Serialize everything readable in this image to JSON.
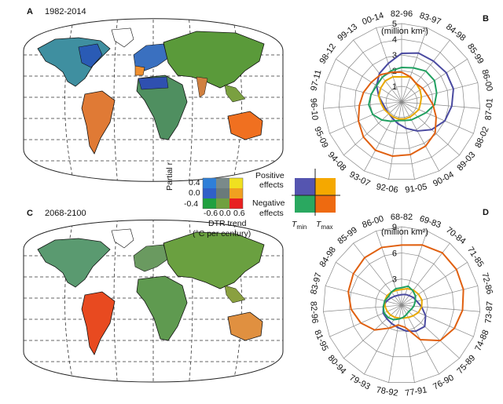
{
  "panels": {
    "a": {
      "label": "A",
      "period": "1982-2014"
    },
    "b": {
      "label": "B"
    },
    "c": {
      "label": "C",
      "period": "2068-2100"
    },
    "d": {
      "label": "D"
    }
  },
  "legend": {
    "ylabel": "Partial r",
    "yticks": [
      "0.4",
      "0.0",
      "-0.4"
    ],
    "xticks": [
      "-0.6",
      "0.0",
      "0.6"
    ],
    "xlabel_line1": "DTR trend",
    "xlabel_line2": "(°C per century)",
    "positive": "Positive",
    "effects": "effects",
    "negative": "Negative",
    "tmin": "T",
    "tmin_sub": "min",
    "tmax": "T",
    "tmax_sub": "max",
    "grid_colors": [
      [
        "#2f7fd8",
        "#7a8a8a",
        "#f0e020"
      ],
      [
        "#3060c8",
        "#6a7a7a",
        "#f0a020"
      ],
      [
        "#20a040",
        "#70a040",
        "#e82020"
      ]
    ],
    "quad_colors": {
      "pos_tmin": "#5555b0",
      "pos_tmax": "#f5a800",
      "neg_tmin": "#2aa860",
      "neg_tmax": "#ee6a10"
    }
  },
  "colors": {
    "pos_tmin": "#4a4aa0",
    "pos_tmax": "#e8a800",
    "neg_tmin": "#20a060",
    "neg_tmax": "#e06010"
  },
  "chart_data": [
    {
      "type": "radar",
      "panel": "B",
      "unit": "(million km²)",
      "rlim": [
        0,
        5
      ],
      "rticks": [
        "1",
        "2",
        "3",
        "4",
        "5"
      ],
      "categories": [
        "82-96",
        "83-97",
        "84-98",
        "85-99",
        "86-00",
        "87-01",
        "88-02",
        "89-03",
        "90-04",
        "91-05",
        "92-06",
        "93-07",
        "94-08",
        "95-09",
        "96-10",
        "97-11",
        "98-12",
        "99-13",
        "00-14"
      ],
      "series": [
        {
          "key": "pos_tmin",
          "values": [
            3.1,
            3.3,
            3.3,
            3.4,
            3.4,
            3.2,
            3.0,
            2.6,
            2.1,
            1.7,
            1.4,
            1.2,
            1.1,
            1.1,
            1.2,
            1.5,
            1.9,
            2.3,
            2.6
          ]
        },
        {
          "key": "pos_tmax",
          "values": [
            1.6,
            1.7,
            1.5,
            1.4,
            1.3,
            1.2,
            1.2,
            1.1,
            1.1,
            1.1,
            1.1,
            1.1,
            1.1,
            1.2,
            1.3,
            1.5,
            1.6,
            1.7,
            1.7
          ]
        },
        {
          "key": "neg_tmin",
          "values": [
            2.2,
            2.3,
            2.5,
            2.5,
            2.3,
            2.1,
            1.7,
            1.4,
            1.3,
            1.2,
            1.2,
            1.4,
            1.7,
            2.0,
            2.1,
            2.0,
            1.9,
            2.0,
            2.1
          ]
        },
        {
          "key": "neg_tmax",
          "values": [
            1.9,
            1.7,
            1.5,
            1.6,
            1.7,
            2.0,
            2.4,
            2.9,
            3.2,
            3.4,
            3.5,
            3.5,
            3.3,
            3.0,
            2.7,
            2.5,
            2.3,
            2.2,
            2.0
          ]
        }
      ]
    },
    {
      "type": "radar",
      "panel": "D",
      "unit": "(million km²)",
      "rlim": [
        0,
        9
      ],
      "rticks": [
        "3",
        "6",
        "9"
      ],
      "categories": [
        "68-82",
        "69-83",
        "70-84",
        "71-85",
        "72-86",
        "73-87",
        "74-88",
        "75-89",
        "76-90",
        "77-91",
        "78-92",
        "79-93",
        "80-94",
        "81-95",
        "82-96",
        "83-97",
        "84-98",
        "85-99",
        "86-00"
      ],
      "series": [
        {
          "key": "pos_tmin",
          "values": [
            1.2,
            1.3,
            1.4,
            1.6,
            1.8,
            2.3,
            3.0,
            3.6,
            3.4,
            3.0,
            2.6,
            2.4,
            2.3,
            2.3,
            2.1,
            1.8,
            1.5,
            1.3,
            1.2
          ]
        },
        {
          "key": "pos_tmax",
          "values": [
            1.8,
            2.0,
            2.2,
            2.3,
            2.4,
            2.3,
            2.1,
            1.8,
            1.6,
            1.5,
            1.5,
            1.6,
            1.7,
            1.8,
            1.9,
            2.0,
            2.0,
            1.9,
            1.8
          ]
        },
        {
          "key": "neg_tmin",
          "values": [
            2.0,
            2.3,
            2.1,
            1.9,
            1.6,
            1.4,
            1.2,
            1.1,
            1.2,
            1.4,
            1.6,
            1.9,
            2.1,
            2.2,
            2.1,
            2.0,
            1.8,
            1.9,
            2.0
          ]
        },
        {
          "key": "neg_tmax",
          "values": [
            6.9,
            7.3,
            7.6,
            7.5,
            7.3,
            7.0,
            6.6,
            6.0,
            4.5,
            2.6,
            2.3,
            3.0,
            4.2,
            5.1,
            5.8,
            6.3,
            6.6,
            6.9,
            7.0
          ]
        }
      ]
    }
  ]
}
